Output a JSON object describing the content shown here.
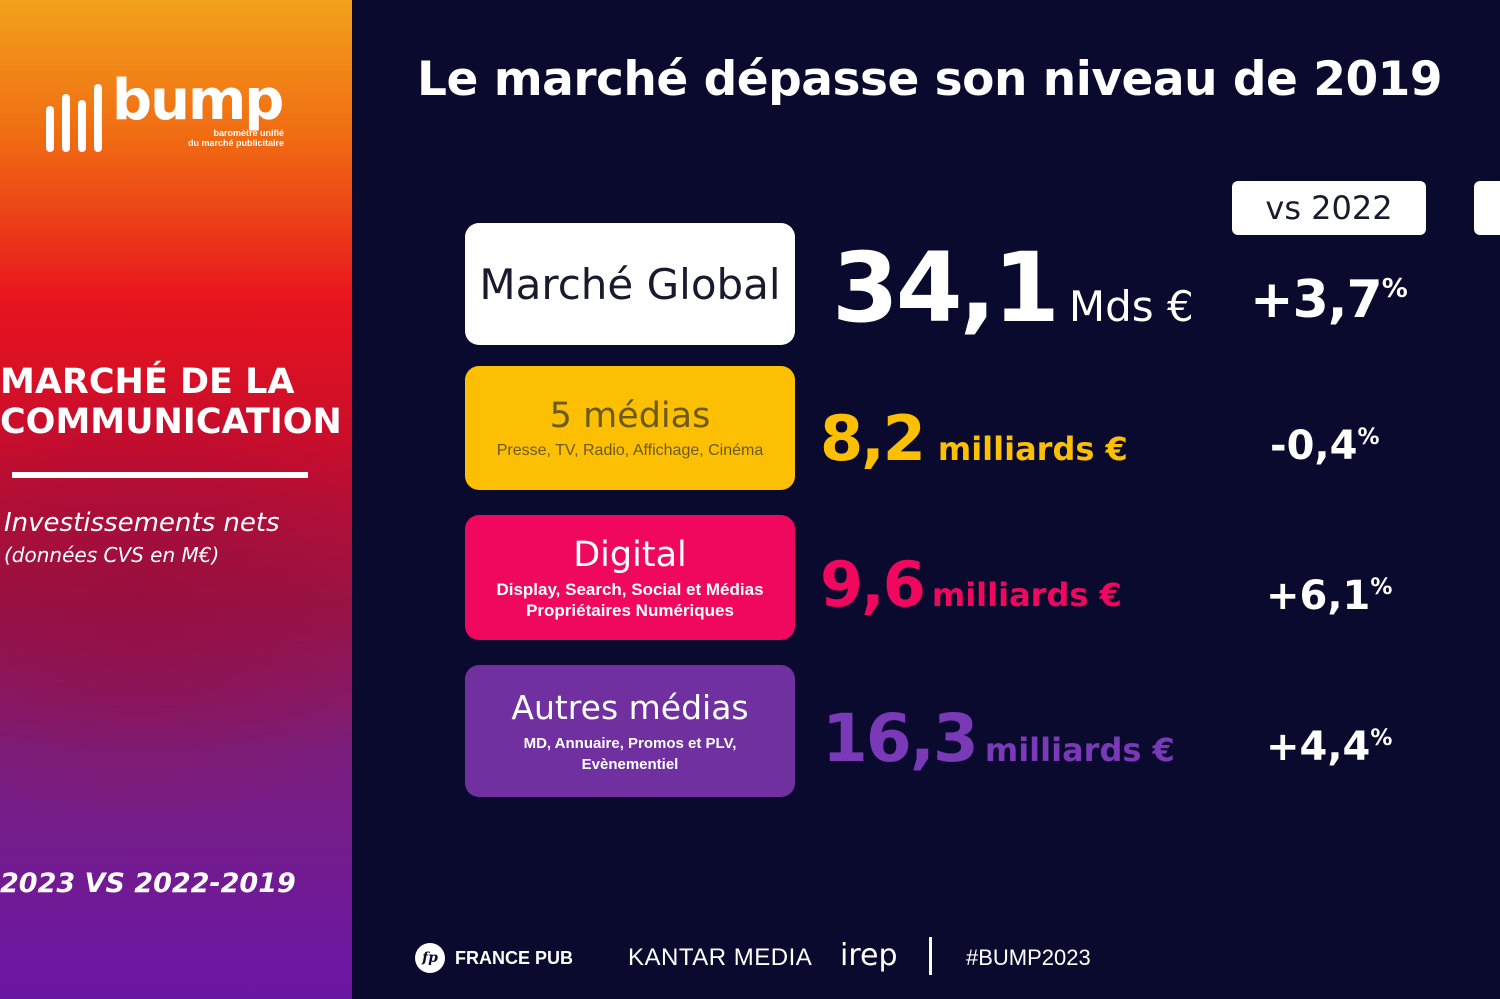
{
  "sidebar": {
    "logo_text": "bump",
    "logo_subtitle_line1": "baromètre unifié",
    "logo_subtitle_line2": "du marché publicitaire",
    "title_line1": "MARCHÉ DE LA",
    "title_line2": "COMMUNICATION",
    "subtitle": "Investissements nets",
    "subtitle_note": "(données CVS en M€)",
    "period": "2023 VS 2022-2019"
  },
  "main": {
    "title": "Le marché dépasse son niveau de 2019",
    "tabs": [
      {
        "label": "vs 2022"
      },
      {
        "label": ""
      }
    ],
    "rows": [
      {
        "category": "Marché Global",
        "description": "",
        "value": "34,1",
        "unit": "Mds €",
        "change": "+3,7",
        "change_unit": "%"
      },
      {
        "category": "5 médias",
        "description": "Presse, TV, Radio, Affichage, Cinéma",
        "value": "8,2",
        "unit": "milliards €",
        "change": "-0,4",
        "change_unit": "%"
      },
      {
        "category": "Digital",
        "description": "Display, Search, Social et Médias Propriétaires Numériques",
        "value": "9,6",
        "unit": "milliards €",
        "change": "+6,1",
        "change_unit": "%"
      },
      {
        "category": "Autres médias",
        "description": "MD, Annuaire, Promos et PLV, Evènementiel",
        "value": "16,3",
        "unit": "milliards €",
        "change": "+4,4",
        "change_unit": "%"
      }
    ]
  },
  "footer": {
    "francepub_mark": "fp",
    "francepub": "FRANCE PUB",
    "kantar": "KANTAR MEDIA",
    "irep": "irep",
    "hashtag": "#BUMP2023"
  },
  "colors": {
    "background": "#0a0a2e",
    "global": "#ffffff",
    "five_media": "#fcbf02",
    "digital": "#f0075e",
    "other_media": "#7030a0"
  }
}
